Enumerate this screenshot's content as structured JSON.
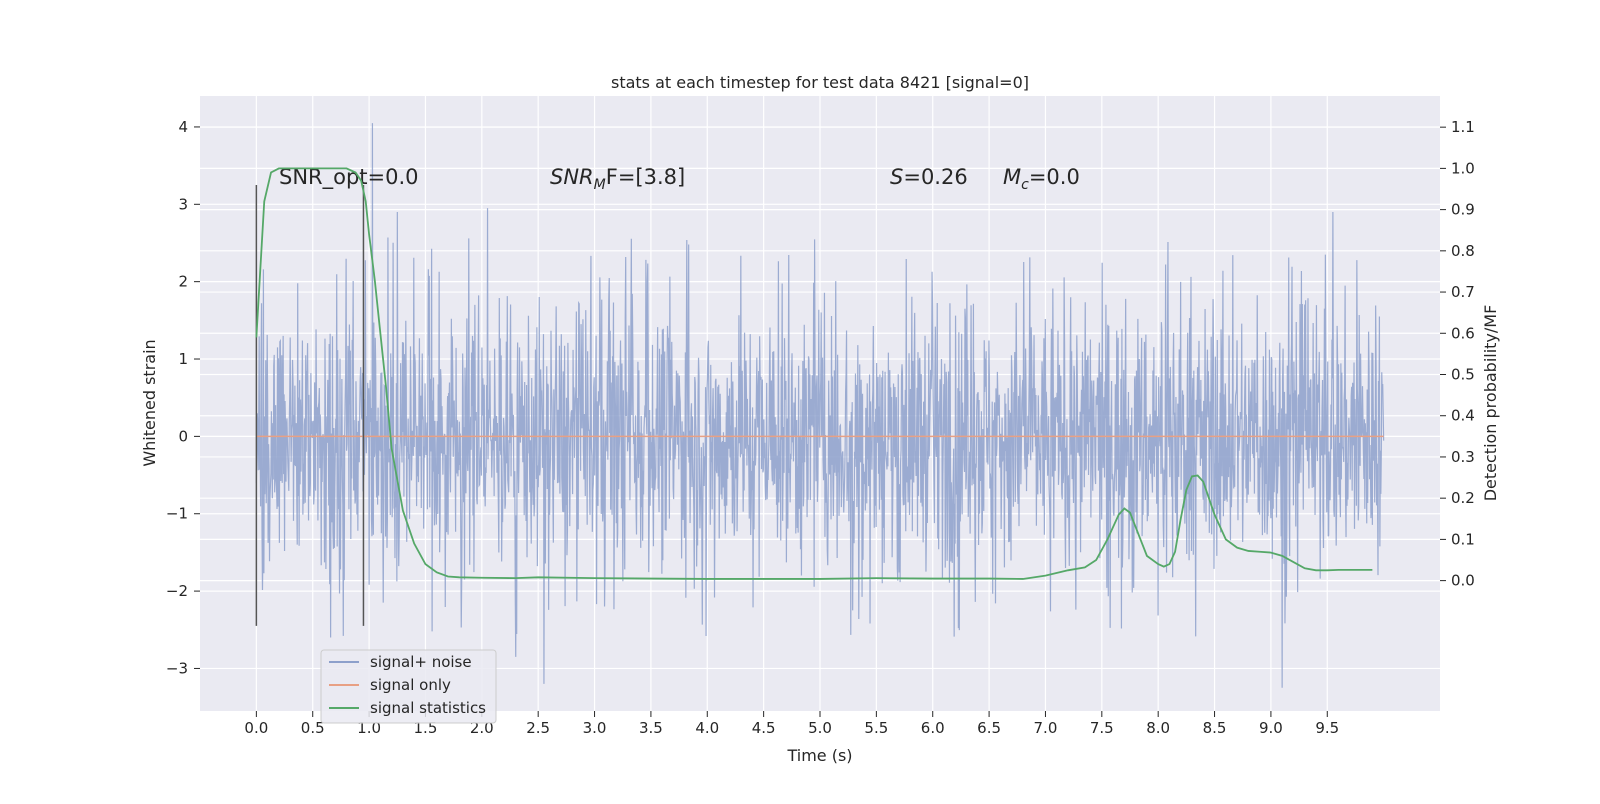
{
  "chart_data": {
    "type": "line",
    "title": "stats at each timestep for test data 8421 [signal=0]",
    "xlabel": "Time (s)",
    "ylabel": "Whitened strain",
    "ylabel_right": "Detection probability/MF",
    "xlim": [
      -0.5,
      10.5
    ],
    "ylim": [
      -3.55,
      4.4
    ],
    "ylim_right": [
      -0.3163,
      1.1756
    ],
    "x_ticks": [
      "0.0",
      "0.5",
      "1.0",
      "1.5",
      "2.0",
      "2.5",
      "3.0",
      "3.5",
      "4.0",
      "4.5",
      "5.0",
      "5.5",
      "6.0",
      "6.5",
      "7.0",
      "7.5",
      "8.0",
      "8.5",
      "9.0",
      "9.5"
    ],
    "y_ticks_left": [
      "4",
      "3",
      "2",
      "1",
      "0",
      "−1",
      "−2",
      "−3"
    ],
    "y_ticks_right": [
      "1.1",
      "1.0",
      "0.9",
      "0.8",
      "0.7",
      "0.6",
      "0.5",
      "0.4",
      "0.3",
      "0.2",
      "0.1",
      "0.0"
    ],
    "annotations": {
      "snr_opt": "SNR_opt=0.0",
      "snr_mf_prefix": "SNR",
      "snr_mf_sub": "M",
      "snr_mf_suffix": "F=[3.8]",
      "s_label": "S",
      "s_value": "=0.26",
      "mc_label": "M",
      "mc_sub": "c",
      "mc_value": "=0.0"
    },
    "vertical_markers": [
      0.0,
      0.95
    ],
    "vertical_marker_range": [
      -2.45,
      3.25
    ],
    "legend": {
      "placement": "lower-left",
      "entries": [
        {
          "label": "signal+ noise",
          "color": "#8da0cb"
        },
        {
          "label": "signal only",
          "color": "#e8a084"
        },
        {
          "label": "signal statistics",
          "color": "#55a868"
        }
      ]
    },
    "series": [
      {
        "name": "signal+ noise",
        "color": "#8da0cb",
        "axis": "left",
        "x_range": [
          0.0,
          10.0
        ],
        "envelope_typical": [
          -1.6,
          1.6
        ],
        "extremes": [
          {
            "x": 1.03,
            "y": 4.05
          },
          {
            "x": 0.66,
            "y": -2.6
          },
          {
            "x": 2.3,
            "y": -2.85
          },
          {
            "x": 2.55,
            "y": -3.2
          },
          {
            "x": 9.1,
            "y": -3.25
          },
          {
            "x": 9.55,
            "y": 2.9
          },
          {
            "x": 2.05,
            "y": 2.95
          },
          {
            "x": 1.25,
            "y": 2.9
          }
        ]
      },
      {
        "name": "signal only",
        "color": "#e8a084",
        "axis": "left",
        "x": [
          0.0,
          10.0
        ],
        "y": [
          0.0,
          0.0
        ]
      },
      {
        "name": "signal statistics",
        "color": "#55a868",
        "axis": "right",
        "x": [
          0.0,
          0.07,
          0.13,
          0.2,
          0.3,
          0.5,
          0.7,
          0.8,
          0.88,
          0.93,
          0.97,
          1.0,
          1.05,
          1.1,
          1.15,
          1.2,
          1.3,
          1.4,
          1.5,
          1.6,
          1.7,
          1.8,
          2.0,
          2.3,
          2.5,
          3.0,
          3.5,
          4.0,
          4.5,
          5.0,
          5.5,
          6.0,
          6.5,
          6.8,
          7.0,
          7.2,
          7.35,
          7.45,
          7.55,
          7.65,
          7.7,
          7.75,
          7.8,
          7.9,
          8.0,
          8.05,
          8.1,
          8.15,
          8.2,
          8.25,
          8.3,
          8.35,
          8.4,
          8.45,
          8.5,
          8.6,
          8.7,
          8.8,
          8.9,
          9.0,
          9.1,
          9.2,
          9.3,
          9.4,
          9.5,
          9.6,
          9.7,
          9.8,
          9.9
        ],
        "y": [
          0.59,
          0.92,
          0.99,
          1.0,
          1.0,
          1.0,
          1.0,
          1.0,
          0.99,
          0.97,
          0.92,
          0.84,
          0.73,
          0.6,
          0.47,
          0.32,
          0.17,
          0.09,
          0.04,
          0.02,
          0.01,
          0.008,
          0.007,
          0.006,
          0.008,
          0.006,
          0.005,
          0.004,
          0.004,
          0.004,
          0.006,
          0.005,
          0.005,
          0.004,
          0.012,
          0.025,
          0.032,
          0.05,
          0.1,
          0.16,
          0.175,
          0.165,
          0.13,
          0.06,
          0.04,
          0.034,
          0.04,
          0.07,
          0.15,
          0.22,
          0.253,
          0.255,
          0.24,
          0.2,
          0.16,
          0.1,
          0.08,
          0.072,
          0.07,
          0.068,
          0.06,
          0.045,
          0.03,
          0.025,
          0.025,
          0.026,
          0.026,
          0.026,
          0.026
        ]
      }
    ]
  }
}
